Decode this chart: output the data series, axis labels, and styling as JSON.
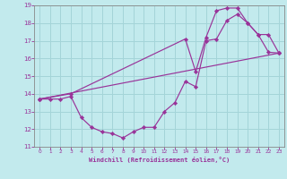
{
  "xlabel": "Windchill (Refroidissement éolien,°C)",
  "xlim": [
    -0.5,
    23.5
  ],
  "ylim": [
    11,
    19
  ],
  "xticks": [
    0,
    1,
    2,
    3,
    4,
    5,
    6,
    7,
    8,
    9,
    10,
    11,
    12,
    13,
    14,
    15,
    16,
    17,
    18,
    19,
    20,
    21,
    22,
    23
  ],
  "yticks": [
    11,
    12,
    13,
    14,
    15,
    16,
    17,
    18,
    19
  ],
  "background_color": "#c2eaed",
  "grid_color": "#a4d4d8",
  "line_color": "#993399",
  "line1_x": [
    0,
    1,
    2,
    3,
    4,
    5,
    6,
    7,
    8,
    9,
    10,
    11,
    12,
    13,
    14,
    15,
    16,
    17,
    18,
    19,
    20,
    21,
    22,
    23
  ],
  "line1_y": [
    13.7,
    13.7,
    13.7,
    13.85,
    12.65,
    12.1,
    11.85,
    11.75,
    11.5,
    11.85,
    12.1,
    12.1,
    13.0,
    13.5,
    14.7,
    14.4,
    17.0,
    17.1,
    18.15,
    18.5,
    18.0,
    17.35,
    16.35,
    16.3
  ],
  "line2_x": [
    0,
    23
  ],
  "line2_y": [
    13.7,
    16.3
  ],
  "line3_x": [
    0,
    3,
    14,
    15,
    16,
    17,
    18,
    19,
    20,
    21,
    22,
    23
  ],
  "line3_y": [
    13.7,
    14.0,
    17.1,
    15.25,
    17.2,
    18.7,
    18.85,
    18.85,
    18.0,
    17.35,
    17.35,
    16.3
  ]
}
